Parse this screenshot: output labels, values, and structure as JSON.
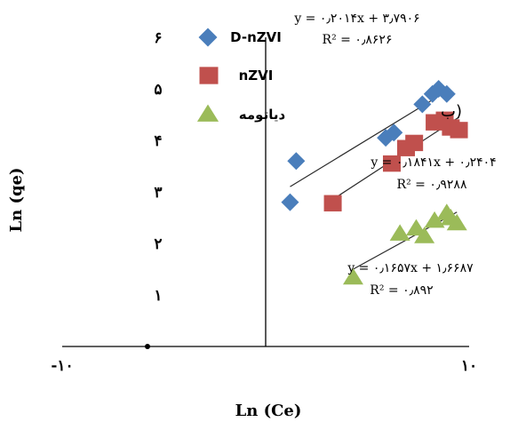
{
  "chart_data": {
    "type": "scatter",
    "title": "",
    "panel_label": "(ب",
    "xlabel": "Ln (Ce)",
    "ylabel": "Ln (qe)",
    "xlim": [
      -10,
      10
    ],
    "ylim": [
      0,
      6
    ],
    "x_ticks": [
      {
        "value": -10,
        "label": "-۱۰"
      },
      {
        "value": 10,
        "label": "۱۰"
      }
    ],
    "y_ticks": [
      {
        "value": 1,
        "label": "۱"
      },
      {
        "value": 2,
        "label": "۲"
      },
      {
        "value": 3,
        "label": "۳"
      },
      {
        "value": 4,
        "label": "۴"
      },
      {
        "value": 5,
        "label": "۵"
      },
      {
        "value": 6,
        "label": "۶"
      }
    ],
    "series": [
      {
        "name": "D-nZVI",
        "marker": "diamond",
        "color": "#4a7ebb",
        "points": [
          [
            1.2,
            2.8
          ],
          [
            1.5,
            3.6
          ],
          [
            5.9,
            4.05
          ],
          [
            6.3,
            4.15
          ],
          [
            7.7,
            4.7
          ],
          [
            8.2,
            4.9
          ],
          [
            8.5,
            5.0
          ],
          [
            8.9,
            4.9
          ]
        ],
        "trendline": {
          "slope": 0.2014,
          "intercept": 3.7906
        },
        "equation": "y = ۰٫۲۰۱۴x + ۳٫۷۹۰۶",
        "r2": "R² = ۰٫۸۶۲۶"
      },
      {
        "name": "nZVI",
        "marker": "square",
        "color": "#c0504d",
        "points": [
          [
            3.3,
            2.78
          ],
          [
            6.2,
            3.55
          ],
          [
            6.9,
            3.85
          ],
          [
            7.3,
            3.95
          ],
          [
            8.3,
            4.35
          ],
          [
            8.8,
            4.4
          ],
          [
            9.1,
            4.25
          ],
          [
            9.5,
            4.2
          ]
        ],
        "trendline": {
          "slope": 0.1841,
          "intercept": 0.2404
        },
        "equation": "y = ۰٫۱۸۴۱x + ۰٫۲۴۰۴",
        "r2": "R² = ۰٫۹۲۸۸"
      },
      {
        "name": "دیاتومه",
        "marker": "triangle",
        "color": "#9bbb59",
        "points": [
          [
            4.3,
            1.35
          ],
          [
            6.6,
            2.2
          ],
          [
            7.4,
            2.3
          ],
          [
            7.8,
            2.15
          ],
          [
            8.3,
            2.45
          ],
          [
            8.9,
            2.6
          ],
          [
            9.1,
            2.5
          ],
          [
            9.4,
            2.4
          ]
        ],
        "trendline": {
          "slope": 0.1657,
          "intercept": 1.6687
        },
        "equation": "y = ۰٫۱۶۵۷x + ۱٫۶۶۸۷",
        "r2": "R² = ۰٫۸۹۲"
      }
    ],
    "legend_position": "top-left"
  }
}
